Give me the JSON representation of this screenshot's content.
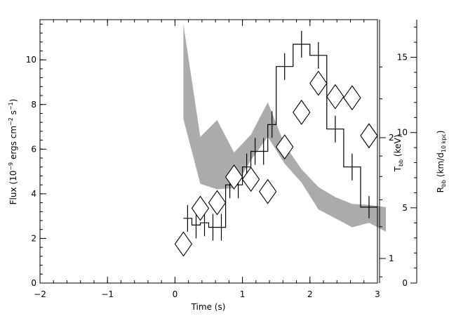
{
  "chart_data": {
    "type": "scatter",
    "x_axis": {
      "label": "Time (s)",
      "lim": [
        -2,
        3
      ],
      "ticks": [
        -2,
        -1,
        0,
        1,
        2,
        3
      ]
    },
    "y_left": {
      "label_main": "Flux (10",
      "label_exp1": "−9",
      "label_mid": " ergs cm",
      "label_exp2": "−2",
      "label_s": " s",
      "label_exp3": "−1",
      "label_close": ")",
      "lim": [
        0,
        11.8
      ],
      "ticks": [
        0,
        2,
        4,
        6,
        8,
        10
      ]
    },
    "y_right_T": {
      "label_main": "T",
      "label_sub": "bb",
      "label_unit": " (keV)",
      "ticks": [
        1,
        2
      ],
      "tick_labels": [
        "1",
        "2"
      ],
      "scale": "log"
    },
    "y_right_R": {
      "label_main": "R",
      "label_sub": "bb",
      "label_unit_open": " (km/d",
      "label_unit_sub": "10 kpc",
      "label_unit_close": ")",
      "lim": [
        0,
        17.5
      ],
      "ticks": [
        0,
        5,
        10,
        15
      ]
    },
    "flux_histogram": {
      "time_edges": [
        0.125,
        0.25,
        0.375,
        0.5,
        0.625,
        0.75,
        0.875,
        1.0,
        1.125,
        1.25,
        1.375,
        1.5,
        1.75,
        2.0,
        2.25,
        2.5,
        2.75,
        3.0
      ],
      "values": [
        2.9,
        2.6,
        2.7,
        2.5,
        2.5,
        4.4,
        4.4,
        5.2,
        5.9,
        5.9,
        7.1,
        9.7,
        10.7,
        10.2,
        6.9,
        5.2,
        3.4
      ],
      "errors": [
        0.6,
        0.6,
        0.6,
        0.6,
        0.6,
        0.6,
        0.6,
        0.6,
        0.6,
        0.6,
        0.6,
        0.6,
        0.6,
        0.6,
        0.6,
        0.6,
        0.5
      ]
    },
    "temperature_points": [
      {
        "time": 0.125,
        "flux_axis": 1.75
      },
      {
        "time": 0.375,
        "flux_axis": 3.35
      },
      {
        "time": 0.625,
        "flux_axis": 3.6
      },
      {
        "time": 0.875,
        "flux_axis": 4.75
      },
      {
        "time": 1.125,
        "flux_axis": 4.65
      },
      {
        "time": 1.375,
        "flux_axis": 4.1
      },
      {
        "time": 1.625,
        "flux_axis": 6.1
      },
      {
        "time": 1.875,
        "flux_axis": 7.65
      },
      {
        "time": 2.125,
        "flux_axis": 8.95
      },
      {
        "time": 2.375,
        "flux_axis": 8.35
      },
      {
        "time": 2.625,
        "flux_axis": 8.3
      },
      {
        "time": 2.875,
        "flux_axis": 6.6
      }
    ],
    "radius_band": {
      "time": [
        0.125,
        0.375,
        0.625,
        0.875,
        1.125,
        1.375,
        1.625,
        1.875,
        2.125,
        2.375,
        2.625,
        2.875,
        3.125
      ],
      "upper_flux_axis": [
        11.6,
        6.55,
        7.3,
        5.85,
        6.65,
        8.1,
        6.2,
        5.1,
        4.3,
        3.85,
        3.55,
        3.5,
        3.4
      ],
      "lower_flux_axis": [
        7.35,
        4.45,
        4.2,
        4.25,
        5.5,
        6.55,
        5.35,
        4.5,
        3.3,
        2.9,
        2.5,
        2.7,
        2.3
      ]
    },
    "colors": {
      "band": "#ababab",
      "line": "#000000",
      "background": "#ffffff"
    }
  }
}
